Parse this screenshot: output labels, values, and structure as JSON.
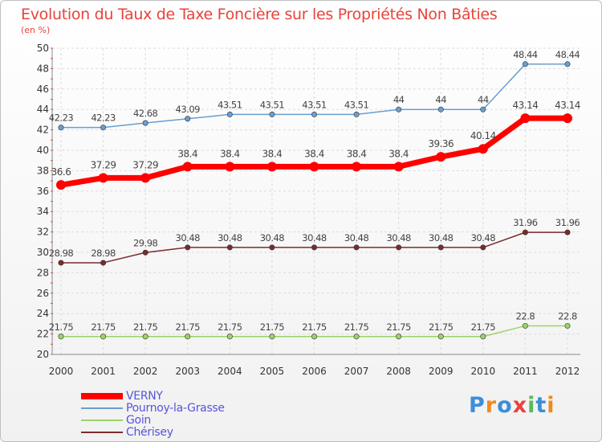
{
  "header": {
    "title": "Evolution du Taux de Taxe Foncière sur les Propriétés Non Bâties",
    "unit": "(en %)"
  },
  "logo": {
    "text": "Proxiti",
    "colors": [
      "#3a8fd8",
      "#f08a1c",
      "#3a8fd8",
      "#e8433a",
      "#5cb85c",
      "#3a8fd8",
      "#f08a1c"
    ]
  },
  "chart_data": {
    "type": "line",
    "title": "Evolution du Taux de Taxe Foncière sur les Propriétés Non Bâties",
    "ylabel": "(en %)",
    "xlabel": "",
    "categories": [
      "2000",
      "2001",
      "2002",
      "2003",
      "2004",
      "2005",
      "2006",
      "2007",
      "2008",
      "2009",
      "2010",
      "2011",
      "2012"
    ],
    "ylim": [
      20,
      50
    ],
    "yticks": [
      "20",
      "22",
      "24",
      "26",
      "28",
      "30",
      "32",
      "34",
      "36",
      "38",
      "40",
      "42",
      "44",
      "46",
      "48",
      "50"
    ],
    "grid": true,
    "legend_position": "bottom-left",
    "series": [
      {
        "name": "VERNY",
        "color": "#ff0000",
        "main": true,
        "values": [
          36.6,
          37.29,
          37.29,
          38.4,
          38.4,
          38.4,
          38.4,
          38.4,
          38.4,
          39.36,
          40.14,
          43.14,
          43.14
        ],
        "labels": [
          "36.6",
          "37.29",
          "37.29",
          "38.4",
          "38.4",
          "38.4",
          "38.4",
          "38.4",
          "38.4",
          "39.36",
          "40.14",
          "43.14",
          "43.14"
        ]
      },
      {
        "name": "Pournoy-la-Grasse",
        "color": "#6a9ed0",
        "main": false,
        "values": [
          42.23,
          42.23,
          42.68,
          43.09,
          43.51,
          43.51,
          43.51,
          43.51,
          44,
          44,
          44,
          48.44,
          48.44
        ],
        "labels": [
          "42.23",
          "42.23",
          "42.68",
          "43.09",
          "43.51",
          "43.51",
          "43.51",
          "43.51",
          "44",
          "44",
          "44",
          "48.44",
          "48.44"
        ]
      },
      {
        "name": "Goin",
        "color": "#9ad46a",
        "main": false,
        "values": [
          21.75,
          21.75,
          21.75,
          21.75,
          21.75,
          21.75,
          21.75,
          21.75,
          21.75,
          21.75,
          21.75,
          22.8,
          22.8
        ],
        "labels": [
          "21.75",
          "21.75",
          "21.75",
          "21.75",
          "21.75",
          "21.75",
          "21.75",
          "21.75",
          "21.75",
          "21.75",
          "21.75",
          "22.8",
          "22.8"
        ]
      },
      {
        "name": "Chérisey",
        "color": "#7b2b2b",
        "main": false,
        "values": [
          28.98,
          28.98,
          29.98,
          30.48,
          30.48,
          30.48,
          30.48,
          30.48,
          30.48,
          30.48,
          30.48,
          31.96,
          31.96
        ],
        "labels": [
          "28.98",
          "28.98",
          "29.98",
          "30.48",
          "30.48",
          "30.48",
          "30.48",
          "30.48",
          "30.48",
          "30.48",
          "30.48",
          "31.96",
          "31.96"
        ]
      }
    ]
  }
}
